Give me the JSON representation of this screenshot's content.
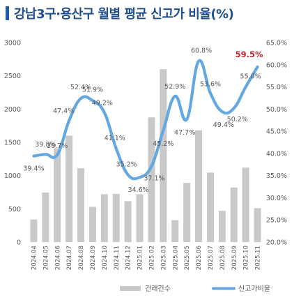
{
  "title": "강남3구·용산구 월별 평균 신고가 비율(%)",
  "colors": {
    "bar": "#c9c9c9",
    "line": "#64a8e2",
    "title": "#1f4e8c",
    "title_accent": "#1f5aa8",
    "highlight_label": "#c0282d",
    "label": "#595959"
  },
  "chart_data": {
    "type": "bar",
    "categories": [
      "2024.04",
      "2024.05",
      "2024.06",
      "2024.07",
      "2024.08",
      "2024.09",
      "2024.10",
      "2024.11",
      "2024.12",
      "2025.01",
      "2025.02",
      "2025.03",
      "2025.04",
      "2025.05",
      "2025.06",
      "2025.07",
      "2025.08",
      "2025.09",
      "2025.10",
      "2025.11"
    ],
    "series": [
      {
        "name": "건래건수",
        "type": "bar",
        "axis": "left",
        "values": [
          340,
          745,
          1410,
          1600,
          1110,
          530,
          720,
          725,
          615,
          720,
          1875,
          2600,
          330,
          890,
          1680,
          1045,
          470,
          820,
          1120,
          510
        ]
      },
      {
        "name": "신고가비율",
        "type": "line",
        "axis": "right",
        "values": [
          39.4,
          39.8,
          39.7,
          47.4,
          52.4,
          51.9,
          49.2,
          41.1,
          35.2,
          34.6,
          37.1,
          45.2,
          52.9,
          47.7,
          60.8,
          53.6,
          49.4,
          50.2,
          55.0,
          59.5
        ],
        "labels": [
          "39.4%",
          "39.8%",
          "39.7%",
          "47.4%",
          "52.4%",
          "51.9%",
          "49.2%",
          "41.1%",
          "35.2%",
          "34.6%",
          "37.1%",
          "45.2%",
          "52.9%",
          "47.7%",
          "60.8%",
          "53.6%",
          "49.4%",
          "50.2%",
          "55.0%",
          "59.5%"
        ]
      }
    ],
    "y_left": {
      "min": 0,
      "max": 3000,
      "ticks": [
        "0",
        "500",
        "1000",
        "1500",
        "2000",
        "2500",
        "3000"
      ]
    },
    "y_right": {
      "min": 20,
      "max": 65,
      "ticks": [
        "20.0%",
        "25.0%",
        "30.0%",
        "35.0%",
        "40.0%",
        "45.0%",
        "50.0%",
        "55.0%",
        "60.0%",
        "65.0%"
      ]
    },
    "legend": {
      "position": "bottom",
      "items": [
        "건래건수",
        "신고가비율"
      ]
    },
    "grid": false,
    "highlight_index": 19
  }
}
